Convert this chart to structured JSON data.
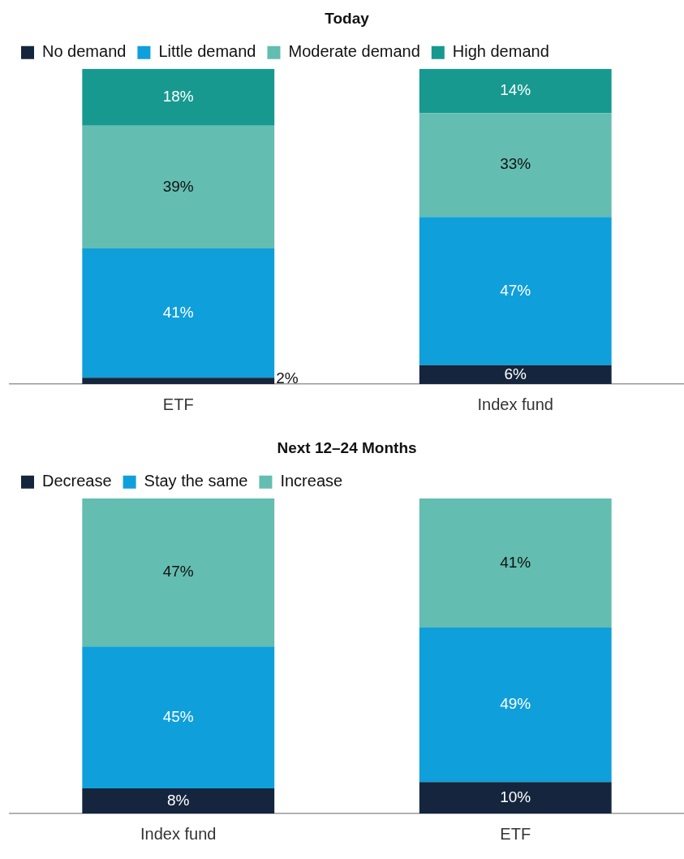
{
  "chart_data": [
    {
      "type": "bar",
      "title": "Today",
      "stacked": true,
      "categories": [
        "ETF",
        "Index fund"
      ],
      "ylim": [
        0,
        100
      ],
      "tick_labels": "x",
      "grid": false,
      "legend": "top left",
      "series": [
        {
          "name": "No demand",
          "color": "#14253d",
          "values": [
            2,
            6
          ],
          "value_labels": [
            "2%",
            "6%"
          ]
        },
        {
          "name": "Little demand",
          "color": "#0f9fdb",
          "values": [
            41,
            47
          ],
          "value_labels": [
            "41%",
            "47%"
          ]
        },
        {
          "name": "Moderate demand",
          "color": "#63bdb0",
          "values": [
            39,
            33
          ],
          "value_labels": [
            "39%",
            "33%"
          ]
        },
        {
          "name": "High demand",
          "color": "#17998f",
          "values": [
            18,
            14
          ],
          "value_labels": [
            "18%",
            "14%"
          ]
        }
      ]
    },
    {
      "type": "bar",
      "title": "Next 12–24 Months",
      "stacked": true,
      "categories": [
        "Index fund",
        "ETF"
      ],
      "ylim": [
        0,
        100
      ],
      "tick_labels": "x",
      "grid": false,
      "legend": "top left",
      "series": [
        {
          "name": "Decrease",
          "color": "#14253d",
          "values": [
            8,
            10
          ],
          "value_labels": [
            "8%",
            "10%"
          ]
        },
        {
          "name": "Stay the same",
          "color": "#0f9fdb",
          "values": [
            45,
            49
          ],
          "value_labels": [
            "45%",
            "49%"
          ]
        },
        {
          "name": "Increase",
          "color": "#63bdb0",
          "values": [
            47,
            41
          ],
          "value_labels": [
            "47%",
            "41%"
          ]
        }
      ]
    }
  ]
}
